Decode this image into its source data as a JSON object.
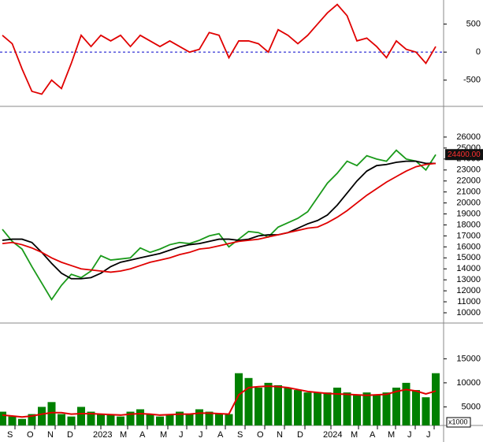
{
  "chart_data": [
    {
      "type": "line",
      "x": [
        0,
        0.5,
        1,
        1.5,
        2,
        2.5,
        3,
        3.5,
        4,
        4.5,
        5,
        5.5,
        6,
        6.5,
        7,
        7.5,
        8,
        8.5,
        9,
        9.5,
        10,
        10.5,
        11,
        11.5,
        12,
        12.5,
        13,
        13.5,
        14,
        14.5,
        15,
        15.5,
        16,
        16.5,
        17,
        17.5,
        18,
        18.5,
        19,
        19.5,
        20,
        20.5,
        21,
        21.5,
        22
      ],
      "xlim": [
        0,
        22.52
      ],
      "ylim": [
        -940,
        930
      ],
      "yticks": [
        -500,
        0,
        500
      ],
      "reference_line": 0,
      "reference_color": "#0000cc",
      "series": [
        {
          "color": "#e00000",
          "values": [
            300,
            150,
            -300,
            -700,
            -750,
            -500,
            -650,
            -200,
            300,
            100,
            300,
            200,
            300,
            100,
            300,
            200,
            100,
            200,
            100,
            0,
            50,
            350,
            300,
            -100,
            200,
            200,
            150,
            0,
            400,
            300,
            150,
            300,
            500,
            700,
            850,
            650,
            200,
            250,
            100,
            -100,
            200,
            50,
            0,
            -200,
            100
          ]
        }
      ]
    },
    {
      "type": "line",
      "x": [
        0,
        0.5,
        1,
        1.5,
        2,
        2.5,
        3,
        3.5,
        4,
        4.5,
        5,
        5.5,
        6,
        6.5,
        7,
        7.5,
        8,
        8.5,
        9,
        9.5,
        10,
        10.5,
        11,
        11.5,
        12,
        12.5,
        13,
        13.5,
        14,
        14.5,
        15,
        15.5,
        16,
        16.5,
        17,
        17.5,
        18,
        18.5,
        19,
        19.5,
        20,
        20.5,
        21,
        21.5,
        22
      ],
      "xlim": [
        0,
        22.52
      ],
      "ylim": [
        9210,
        28650
      ],
      "yticks": [
        10000,
        11000,
        12000,
        13000,
        14000,
        15000,
        16000,
        17000,
        18000,
        19000,
        20000,
        21000,
        22000,
        23000,
        24000,
        25000,
        26000
      ],
      "price_label": {
        "value": 24400,
        "label": "24400.00"
      },
      "series": [
        {
          "color": "#1a9a1a",
          "values": [
            17600,
            16500,
            15800,
            14200,
            12700,
            11200,
            12500,
            13500,
            13200,
            13800,
            15200,
            14800,
            14900,
            15000,
            15900,
            15500,
            15800,
            16200,
            16400,
            16300,
            16600,
            17000,
            17200,
            16000,
            16700,
            17400,
            17300,
            16900,
            17800,
            18200,
            18600,
            19200,
            20500,
            21800,
            22700,
            23800,
            23400,
            24300,
            24000,
            23800,
            24800,
            24000,
            23800,
            23000,
            24400
          ]
        },
        {
          "color": "#000000",
          "values": [
            16600,
            16700,
            16700,
            16400,
            15500,
            14500,
            13600,
            13100,
            13100,
            13200,
            13600,
            14200,
            14600,
            14800,
            15000,
            15200,
            15400,
            15700,
            16000,
            16200,
            16300,
            16500,
            16700,
            16700,
            16600,
            16700,
            17000,
            17100,
            17100,
            17300,
            17700,
            18100,
            18400,
            18900,
            19800,
            20900,
            22000,
            22900,
            23400,
            23500,
            23700,
            23800,
            23800,
            23600,
            23600
          ]
        },
        {
          "color": "#e00000",
          "values": [
            16300,
            16400,
            16200,
            15900,
            15500,
            15000,
            14600,
            14300,
            14000,
            13900,
            13800,
            13700,
            13800,
            14000,
            14300,
            14600,
            14800,
            15000,
            15300,
            15500,
            15800,
            15900,
            16100,
            16300,
            16500,
            16600,
            16700,
            16900,
            17100,
            17300,
            17500,
            17700,
            17800,
            18200,
            18700,
            19300,
            20000,
            20700,
            21300,
            21900,
            22400,
            22900,
            23300,
            23500,
            23600
          ]
        }
      ]
    },
    {
      "type": "bar",
      "x": [
        0,
        0.5,
        1,
        1.5,
        2,
        2.5,
        3,
        3.5,
        4,
        4.5,
        5,
        5.5,
        6,
        6.5,
        7,
        7.5,
        8,
        8.5,
        9,
        9.5,
        10,
        10.5,
        11,
        11.5,
        12,
        12.5,
        13,
        13.5,
        14,
        14.5,
        15,
        15.5,
        16,
        16.5,
        17,
        17.5,
        18,
        18.5,
        19,
        19.5,
        20,
        20.5,
        21,
        21.5,
        22
      ],
      "xlim": [
        0,
        22.52
      ],
      "ylim": [
        1140,
        22430
      ],
      "yticks": [
        5000,
        10000,
        15000
      ],
      "unit_label": "x1000",
      "color": "#008000",
      "values": [
        4000,
        3000,
        2500,
        3500,
        5000,
        6000,
        3500,
        3000,
        5000,
        4000,
        3500,
        3500,
        3000,
        4000,
        4500,
        3500,
        3000,
        3500,
        4000,
        3500,
        4500,
        4000,
        3500,
        3500,
        12000,
        11000,
        9000,
        10000,
        9500,
        9000,
        8500,
        8000,
        8000,
        8000,
        9000,
        8000,
        7500,
        8000,
        7500,
        8000,
        9000,
        10000,
        8500,
        7000,
        12000
      ],
      "series": [
        {
          "color": "#e00000",
          "values": [
            3300,
            3100,
            2900,
            3100,
            3500,
            3800,
            3800,
            3500,
            3600,
            3600,
            3500,
            3400,
            3300,
            3500,
            3600,
            3500,
            3300,
            3400,
            3500,
            3500,
            3700,
            3700,
            3600,
            3500,
            7500,
            9000,
            9200,
            9300,
            9200,
            9000,
            8600,
            8200,
            8000,
            7800,
            7700,
            7600,
            7500,
            7400,
            7500,
            7600,
            8200,
            8600,
            8300,
            7700,
            8300
          ]
        }
      ],
      "xticks": [
        {
          "value": 0.36,
          "label": "S"
        },
        {
          "value": 1.36,
          "label": "O"
        },
        {
          "value": 2.4,
          "label": "N"
        },
        {
          "value": 3.4,
          "label": "D"
        },
        {
          "value": 4.72,
          "label": "2023"
        },
        {
          "value": 6.08,
          "label": "M"
        },
        {
          "value": 7.08,
          "label": "A"
        },
        {
          "value": 8.12,
          "label": "M"
        },
        {
          "value": 9.08,
          "label": "J"
        },
        {
          "value": 10.08,
          "label": "J"
        },
        {
          "value": 11.04,
          "label": "A"
        },
        {
          "value": 12.04,
          "label": "S"
        },
        {
          "value": 13.04,
          "label": "O"
        },
        {
          "value": 14.04,
          "label": "N"
        },
        {
          "value": 15.08,
          "label": "D"
        },
        {
          "value": 16.4,
          "label": "2024"
        },
        {
          "value": 17.8,
          "label": "M"
        },
        {
          "value": 18.76,
          "label": "A"
        },
        {
          "value": 19.68,
          "label": "M"
        },
        {
          "value": 20.68,
          "label": "J"
        },
        {
          "value": 21.64,
          "label": "J"
        }
      ]
    }
  ]
}
